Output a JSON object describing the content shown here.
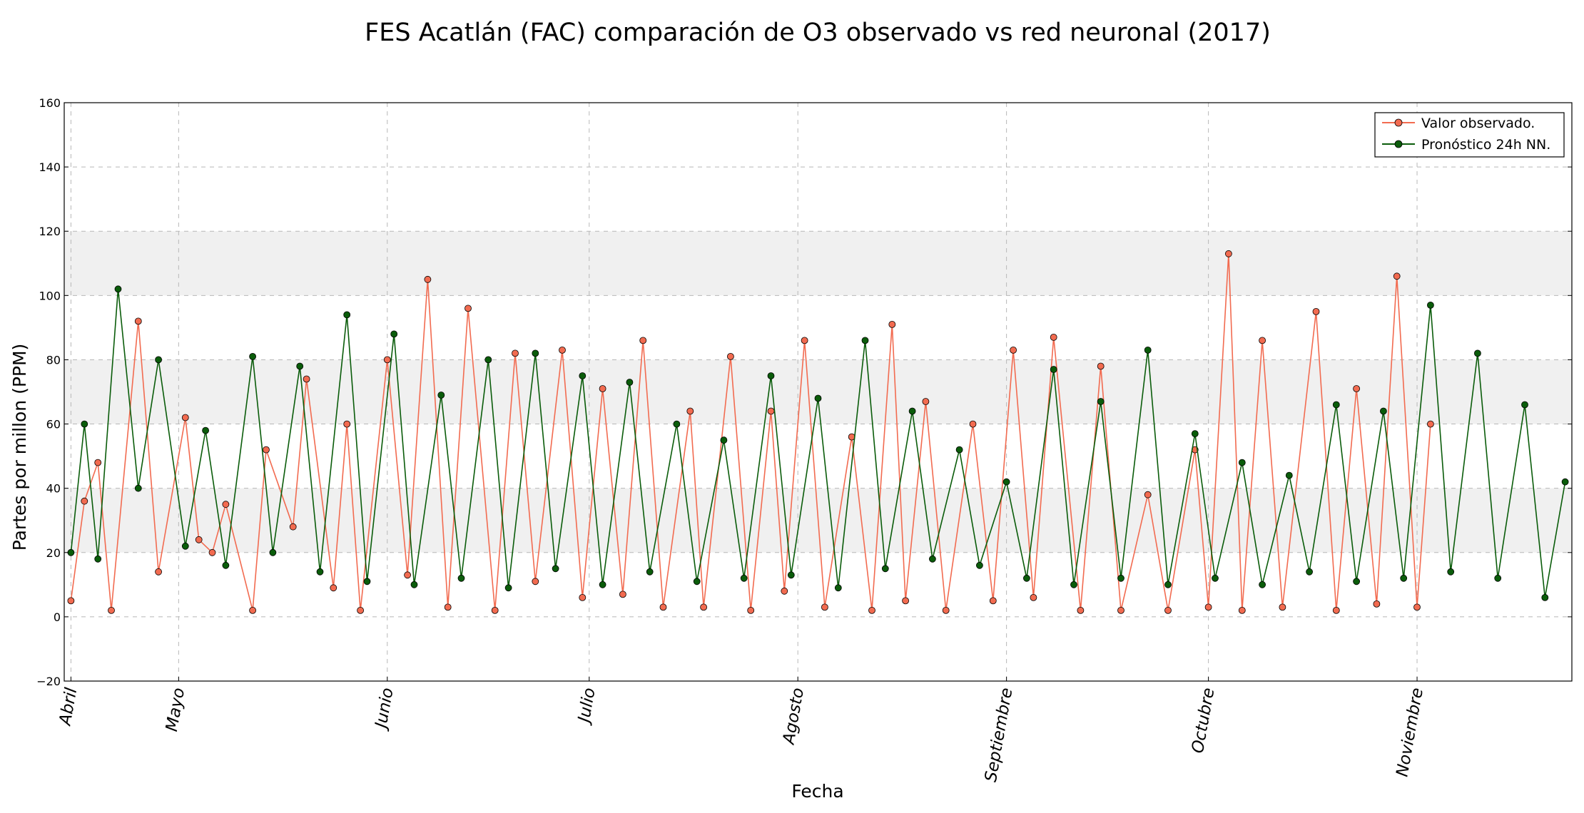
{
  "chart_data": {
    "type": "line",
    "title": "FES Acatlán (FAC) comparación de O3 observado vs red neuronal (2017)",
    "xlabel": "Fecha",
    "ylabel": "Partes por millon (PPM)",
    "ylim": [
      -20,
      160
    ],
    "yticks": [
      -20,
      0,
      20,
      40,
      60,
      80,
      100,
      120,
      140,
      160
    ],
    "xlim": [
      "2017-04-14",
      "2017-11-24"
    ],
    "grid": "dashed",
    "shaded_bands": [
      [
        20,
        40
      ],
      [
        60,
        80
      ],
      [
        100,
        120
      ]
    ],
    "month_ticks": [
      {
        "label": "Abril",
        "date": "2017-04-15"
      },
      {
        "label": "Mayo",
        "date": "2017-05-01"
      },
      {
        "label": "Junio",
        "date": "2017-06-01"
      },
      {
        "label": "Julio",
        "date": "2017-07-01"
      },
      {
        "label": "Agosto",
        "date": "2017-08-01"
      },
      {
        "label": "Septiembre",
        "date": "2017-09-01"
      },
      {
        "label": "Octubre",
        "date": "2017-10-01"
      },
      {
        "label": "Noviembre",
        "date": "2017-11-01"
      }
    ],
    "legend_position": "top-right",
    "series": [
      {
        "name": "Valor observado.",
        "color": "#f26b50",
        "points": [
          [
            "2017-04-15",
            5
          ],
          [
            "2017-04-17",
            36
          ],
          [
            "2017-04-19",
            48
          ],
          [
            "2017-04-21",
            2
          ],
          [
            "2017-04-25",
            92
          ],
          [
            "2017-04-28",
            14
          ],
          [
            "2017-05-02",
            62
          ],
          [
            "2017-05-04",
            24
          ],
          [
            "2017-05-06",
            20
          ],
          [
            "2017-05-08",
            35
          ],
          [
            "2017-05-12",
            2
          ],
          [
            "2017-05-14",
            52
          ],
          [
            "2017-05-18",
            28
          ],
          [
            "2017-05-20",
            74
          ],
          [
            "2017-05-24",
            9
          ],
          [
            "2017-05-26",
            60
          ],
          [
            "2017-05-28",
            2
          ],
          [
            "2017-06-01",
            80
          ],
          [
            "2017-06-04",
            13
          ],
          [
            "2017-06-07",
            105
          ],
          [
            "2017-06-10",
            3
          ],
          [
            "2017-06-13",
            96
          ],
          [
            "2017-06-17",
            2
          ],
          [
            "2017-06-20",
            82
          ],
          [
            "2017-06-23",
            11
          ],
          [
            "2017-06-27",
            83
          ],
          [
            "2017-06-30",
            6
          ],
          [
            "2017-07-03",
            71
          ],
          [
            "2017-07-06",
            7
          ],
          [
            "2017-07-09",
            86
          ],
          [
            "2017-07-12",
            3
          ],
          [
            "2017-07-16",
            64
          ],
          [
            "2017-07-18",
            3
          ],
          [
            "2017-07-22",
            81
          ],
          [
            "2017-07-25",
            2
          ],
          [
            "2017-07-28",
            64
          ],
          [
            "2017-07-30",
            8
          ],
          [
            "2017-08-02",
            86
          ],
          [
            "2017-08-05",
            3
          ],
          [
            "2017-08-09",
            56
          ],
          [
            "2017-08-12",
            2
          ],
          [
            "2017-08-15",
            91
          ],
          [
            "2017-08-17",
            5
          ],
          [
            "2017-08-20",
            67
          ],
          [
            "2017-08-23",
            2
          ],
          [
            "2017-08-27",
            60
          ],
          [
            "2017-08-30",
            5
          ],
          [
            "2017-09-02",
            83
          ],
          [
            "2017-09-05",
            6
          ],
          [
            "2017-09-08",
            87
          ],
          [
            "2017-09-12",
            2
          ],
          [
            "2017-09-15",
            78
          ],
          [
            "2017-09-18",
            2
          ],
          [
            "2017-09-22",
            38
          ],
          [
            "2017-09-25",
            2
          ],
          [
            "2017-09-29",
            52
          ],
          [
            "2017-10-01",
            3
          ],
          [
            "2017-10-04",
            113
          ],
          [
            "2017-10-06",
            2
          ],
          [
            "2017-10-09",
            86
          ],
          [
            "2017-10-12",
            3
          ],
          [
            "2017-10-17",
            95
          ],
          [
            "2017-10-20",
            2
          ],
          [
            "2017-10-23",
            71
          ],
          [
            "2017-10-26",
            4
          ],
          [
            "2017-10-29",
            106
          ],
          [
            "2017-11-01",
            3
          ],
          [
            "2017-11-03",
            60
          ]
        ]
      },
      {
        "name": "Pronóstico 24h NN.",
        "color": "#0a5c0a",
        "points": [
          [
            "2017-04-15",
            20
          ],
          [
            "2017-04-17",
            60
          ],
          [
            "2017-04-19",
            18
          ],
          [
            "2017-04-22",
            102
          ],
          [
            "2017-04-25",
            40
          ],
          [
            "2017-04-28",
            80
          ],
          [
            "2017-05-02",
            22
          ],
          [
            "2017-05-05",
            58
          ],
          [
            "2017-05-08",
            16
          ],
          [
            "2017-05-12",
            81
          ],
          [
            "2017-05-15",
            20
          ],
          [
            "2017-05-19",
            78
          ],
          [
            "2017-05-22",
            14
          ],
          [
            "2017-05-26",
            94
          ],
          [
            "2017-05-29",
            11
          ],
          [
            "2017-06-02",
            88
          ],
          [
            "2017-06-05",
            10
          ],
          [
            "2017-06-09",
            69
          ],
          [
            "2017-06-12",
            12
          ],
          [
            "2017-06-16",
            80
          ],
          [
            "2017-06-19",
            9
          ],
          [
            "2017-06-23",
            82
          ],
          [
            "2017-06-26",
            15
          ],
          [
            "2017-06-30",
            75
          ],
          [
            "2017-07-03",
            10
          ],
          [
            "2017-07-07",
            73
          ],
          [
            "2017-07-10",
            14
          ],
          [
            "2017-07-14",
            60
          ],
          [
            "2017-07-17",
            11
          ],
          [
            "2017-07-21",
            55
          ],
          [
            "2017-07-24",
            12
          ],
          [
            "2017-07-28",
            75
          ],
          [
            "2017-07-31",
            13
          ],
          [
            "2017-08-04",
            68
          ],
          [
            "2017-08-07",
            9
          ],
          [
            "2017-08-11",
            86
          ],
          [
            "2017-08-14",
            15
          ],
          [
            "2017-08-18",
            64
          ],
          [
            "2017-08-21",
            18
          ],
          [
            "2017-08-25",
            52
          ],
          [
            "2017-08-28",
            16
          ],
          [
            "2017-09-01",
            42
          ],
          [
            "2017-09-04",
            12
          ],
          [
            "2017-09-08",
            77
          ],
          [
            "2017-09-11",
            10
          ],
          [
            "2017-09-15",
            67
          ],
          [
            "2017-09-18",
            12
          ],
          [
            "2017-09-22",
            83
          ],
          [
            "2017-09-25",
            10
          ],
          [
            "2017-09-29",
            57
          ],
          [
            "2017-10-02",
            12
          ],
          [
            "2017-10-06",
            48
          ],
          [
            "2017-10-09",
            10
          ],
          [
            "2017-10-13",
            44
          ],
          [
            "2017-10-16",
            14
          ],
          [
            "2017-10-20",
            66
          ],
          [
            "2017-10-23",
            11
          ],
          [
            "2017-10-27",
            64
          ],
          [
            "2017-10-30",
            12
          ],
          [
            "2017-11-03",
            97
          ],
          [
            "2017-11-06",
            14
          ],
          [
            "2017-11-10",
            82
          ],
          [
            "2017-11-13",
            12
          ],
          [
            "2017-11-17",
            66
          ],
          [
            "2017-11-20",
            6
          ],
          [
            "2017-11-23",
            42
          ]
        ]
      }
    ]
  }
}
